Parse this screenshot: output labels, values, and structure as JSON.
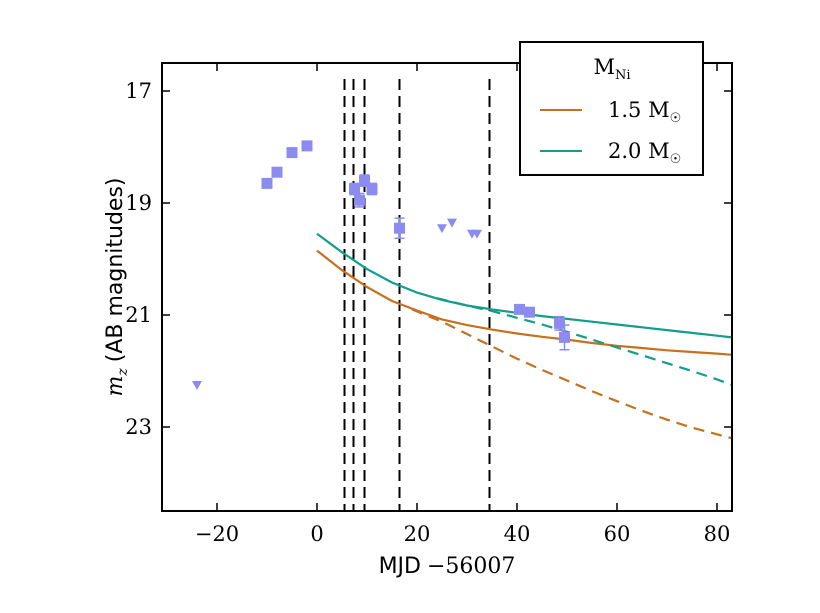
{
  "chart_data": {
    "type": "line",
    "xlabel_text": "MJD",
    "xlabel_offset": "−56007",
    "ylabel_symbol": "m",
    "ylabel_symbol_sub": "z",
    "ylabel_text": "(AB magnitudes)",
    "xlim": [
      -31,
      83
    ],
    "ylim": [
      24.5,
      16.5
    ],
    "y_inverted": true,
    "xticks": [
      -20,
      0,
      20,
      40,
      60,
      80
    ],
    "xtick_labels": [
      "−20",
      "0",
      "20",
      "40",
      "60",
      "80"
    ],
    "yticks": [
      17,
      19,
      21,
      23
    ],
    "ytick_labels": [
      "17",
      "19",
      "21",
      "23"
    ],
    "grid": false,
    "legend": {
      "placement": "top-right",
      "title_main": "M",
      "title_sub": "Ni",
      "entries": [
        {
          "label": "1.5 M",
          "color": "#c5711e"
        },
        {
          "label": "2.0 M",
          "color": "#119e8a"
        }
      ]
    },
    "vlines": [
      5.5,
      7.3,
      9.5,
      16.5,
      34.5
    ],
    "vline_color": "#000000",
    "detections": {
      "color": "#8c8cf0",
      "points": [
        {
          "x": -10,
          "y": 18.65,
          "err": 0.08
        },
        {
          "x": -8,
          "y": 18.45,
          "err": 0.08
        },
        {
          "x": -5,
          "y": 18.1,
          "err": 0.08
        },
        {
          "x": -2,
          "y": 17.98,
          "err": 0.08
        },
        {
          "x": 7.5,
          "y": 18.75,
          "err": 0.1
        },
        {
          "x": 8.5,
          "y": 18.95,
          "err": 0.12
        },
        {
          "x": 9.5,
          "y": 18.6,
          "err": 0.1
        },
        {
          "x": 11,
          "y": 18.75,
          "err": 0.1
        },
        {
          "x": 16.5,
          "y": 19.45,
          "err": 0.18
        },
        {
          "x": 40.5,
          "y": 20.9,
          "err": 0.08
        },
        {
          "x": 42.5,
          "y": 20.95,
          "err": 0.08
        },
        {
          "x": 48.5,
          "y": 21.15,
          "err": 0.12
        },
        {
          "x": 49.5,
          "y": 21.4,
          "err": 0.22
        }
      ]
    },
    "upper_limits": {
      "color": "#8c8cf0",
      "points": [
        {
          "x": -24,
          "y": 22.25
        },
        {
          "x": 25,
          "y": 19.45
        },
        {
          "x": 27,
          "y": 19.35
        },
        {
          "x": 31,
          "y": 19.55
        },
        {
          "x": 32,
          "y": 19.55
        }
      ]
    },
    "series": [
      {
        "name": "1.5 M",
        "color": "#c5711e",
        "dash": false,
        "x": [
          0,
          5,
          10,
          15,
          20,
          25,
          30,
          35,
          40,
          45,
          50,
          55,
          60,
          65,
          70,
          75,
          80,
          83
        ],
        "y": [
          19.85,
          20.2,
          20.5,
          20.75,
          20.92,
          21.08,
          21.18,
          21.26,
          21.33,
          21.39,
          21.44,
          21.5,
          21.55,
          21.59,
          21.63,
          21.66,
          21.69,
          21.71
        ]
      },
      {
        "name": "1.5 M",
        "color": "#c5711e",
        "dash": true,
        "x": [
          19,
          25,
          30,
          35,
          40,
          45,
          50,
          55,
          60,
          65,
          70,
          75,
          80,
          83
        ],
        "y": [
          20.9,
          21.12,
          21.34,
          21.56,
          21.78,
          21.98,
          22.17,
          22.36,
          22.54,
          22.71,
          22.87,
          23.01,
          23.13,
          23.2
        ]
      },
      {
        "name": "2.0 M",
        "color": "#119e8a",
        "dash": false,
        "x": [
          0,
          5,
          10,
          15,
          20,
          25,
          30,
          35,
          40,
          45,
          50,
          55,
          60,
          65,
          70,
          75,
          80,
          83
        ],
        "y": [
          19.55,
          19.88,
          20.18,
          20.42,
          20.6,
          20.73,
          20.83,
          20.9,
          20.96,
          21.02,
          21.07,
          21.12,
          21.17,
          21.22,
          21.27,
          21.32,
          21.37,
          21.4
        ]
      },
      {
        "name": "2.0 M",
        "color": "#119e8a",
        "dash": true,
        "x": [
          24,
          30,
          35,
          40,
          45,
          50,
          55,
          60,
          65,
          70,
          75,
          80,
          83
        ],
        "y": [
          20.7,
          20.83,
          20.93,
          21.05,
          21.17,
          21.3,
          21.44,
          21.58,
          21.72,
          21.86,
          22.0,
          22.15,
          22.25
        ]
      }
    ]
  }
}
